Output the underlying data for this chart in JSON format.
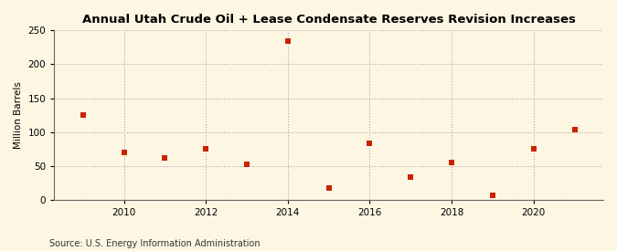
{
  "title": "Annual Utah Crude Oil + Lease Condensate Reserves Revision Increases",
  "ylabel": "Million Barrels",
  "source": "Source: U.S. Energy Information Administration",
  "years": [
    2009,
    2010,
    2011,
    2012,
    2013,
    2014,
    2015,
    2016,
    2017,
    2018,
    2019,
    2020,
    2021
  ],
  "values": [
    125,
    70,
    62,
    75,
    53,
    234,
    17,
    83,
    34,
    55,
    7,
    75,
    103
  ],
  "marker_color": "#cc2200",
  "marker_size": 4,
  "background_color": "#fdf6e3",
  "grid_color": "#aaaaaa",
  "ylim": [
    0,
    250
  ],
  "yticks": [
    0,
    50,
    100,
    150,
    200,
    250
  ],
  "xlim": [
    2008.3,
    2021.7
  ],
  "xticks": [
    2010,
    2012,
    2014,
    2016,
    2018,
    2020
  ],
  "title_fontsize": 9.5,
  "label_fontsize": 7.5,
  "tick_fontsize": 7.5,
  "source_fontsize": 7
}
